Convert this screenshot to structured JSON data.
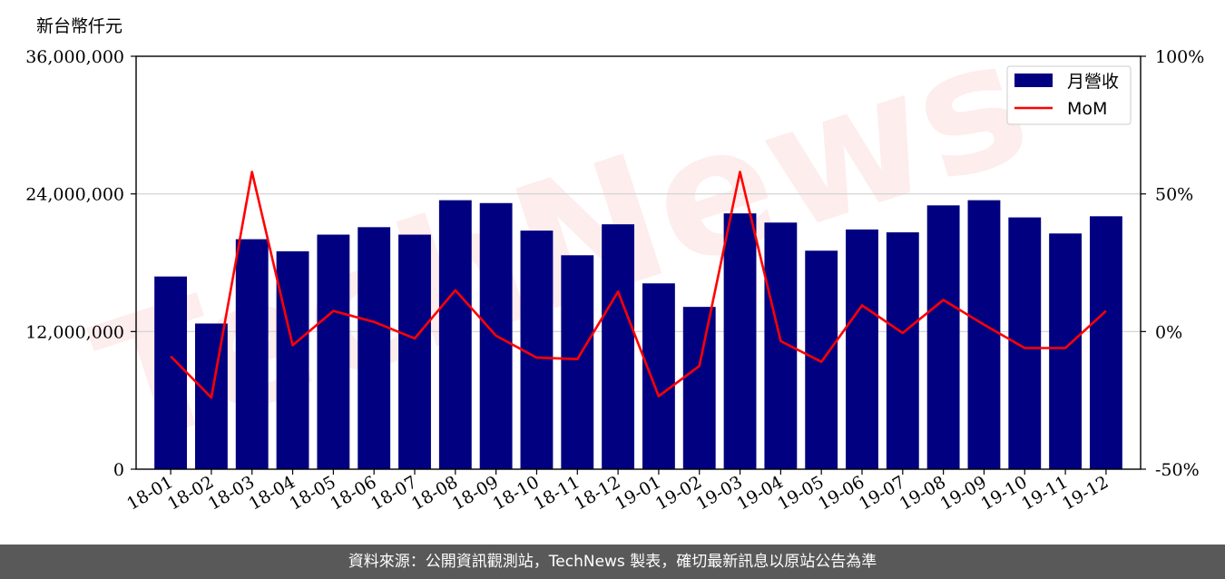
{
  "chart_data": {
    "type": "bar",
    "y_unit_label": "新台幣仟元",
    "categories": [
      "18-01",
      "18-02",
      "18-03",
      "18-04",
      "18-05",
      "18-06",
      "18-07",
      "18-08",
      "18-09",
      "18-10",
      "18-11",
      "18-12",
      "19-01",
      "19-02",
      "19-03",
      "19-04",
      "19-05",
      "19-06",
      "19-07",
      "19-08",
      "19-09",
      "19-10",
      "19-11",
      "19-12"
    ],
    "series": [
      {
        "name": "月營收",
        "type": "bar",
        "axis": "left",
        "color": "#000080",
        "values": [
          16800000,
          12700000,
          20050000,
          19000000,
          20450000,
          21100000,
          20450000,
          23450000,
          23200000,
          20800000,
          18650000,
          21350000,
          16200000,
          14150000,
          22300000,
          21500000,
          19050000,
          20900000,
          20650000,
          23000000,
          23450000,
          21950000,
          20550000,
          22050000
        ]
      },
      {
        "name": "MoM",
        "type": "line",
        "axis": "right",
        "color": "#ff0000",
        "values": [
          -9,
          -24,
          58,
          -5,
          7.5,
          3.5,
          -2.5,
          15,
          -1.5,
          -9.5,
          -10,
          14.5,
          -23.5,
          -12.5,
          58,
          -3.5,
          -11,
          9.5,
          -0.5,
          11.5,
          2.5,
          -6,
          -6,
          7.5
        ]
      }
    ],
    "y_left": {
      "min": 0,
      "max": 36000000,
      "ticks": [
        0,
        12000000,
        24000000,
        36000000
      ],
      "tick_labels": [
        "0",
        "12,000,000",
        "24,000,000",
        "36,000,000"
      ]
    },
    "y_right": {
      "min": -50,
      "max": 100,
      "ticks": [
        -50,
        0,
        50,
        100
      ],
      "tick_labels": [
        "-50%",
        "0%",
        "50%",
        "100%"
      ]
    },
    "grid": "horizontal",
    "legend_position": "top-right",
    "watermark": "TechNews"
  },
  "footer": "資料來源：公開資訊觀測站，TechNews 製表，確切最新訊息以原站公告為準"
}
